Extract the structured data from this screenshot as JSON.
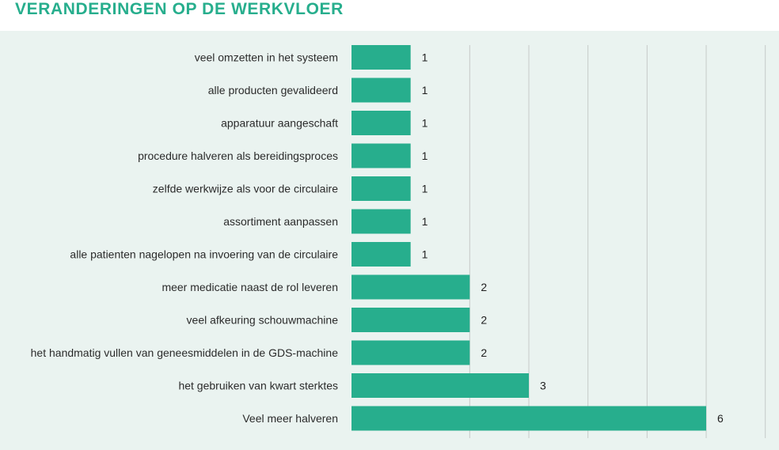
{
  "page": {
    "title": "VERANDERINGEN OP DE WERKVLOER"
  },
  "colors": {
    "accent": "#27ae8d",
    "title": "#27ae8d",
    "panel_background": "#eaf3f0",
    "gridline": "#c6cac8"
  },
  "chart_data": {
    "type": "bar",
    "orientation": "horizontal",
    "title": "VERANDERINGEN OP DE WERKVLOER",
    "categories": [
      "veel omzetten in het systeem",
      "alle producten gevalideerd",
      "apparatuur aangeschaft",
      "procedure halveren als bereidingsproces",
      "zelfde werkwijze als voor de circulaire",
      "assortiment aanpassen",
      "alle patienten nagelopen na invoering van de circulaire",
      "meer medicatie naast de rol leveren",
      "veel afkeuring schouwmachine",
      "het handmatig vullen van geneesmiddelen in de GDS-machine",
      "het gebruiken van kwart sterktes",
      "Veel meer halveren"
    ],
    "values": [
      1,
      1,
      1,
      1,
      1,
      1,
      1,
      2,
      2,
      2,
      3,
      6
    ],
    "data_labels": [
      "1",
      "1",
      "1",
      "1",
      "1",
      "1",
      "1",
      "2",
      "2",
      "2",
      "3",
      "6"
    ],
    "xlim": [
      0,
      7
    ],
    "grid": true,
    "legend": "none"
  }
}
